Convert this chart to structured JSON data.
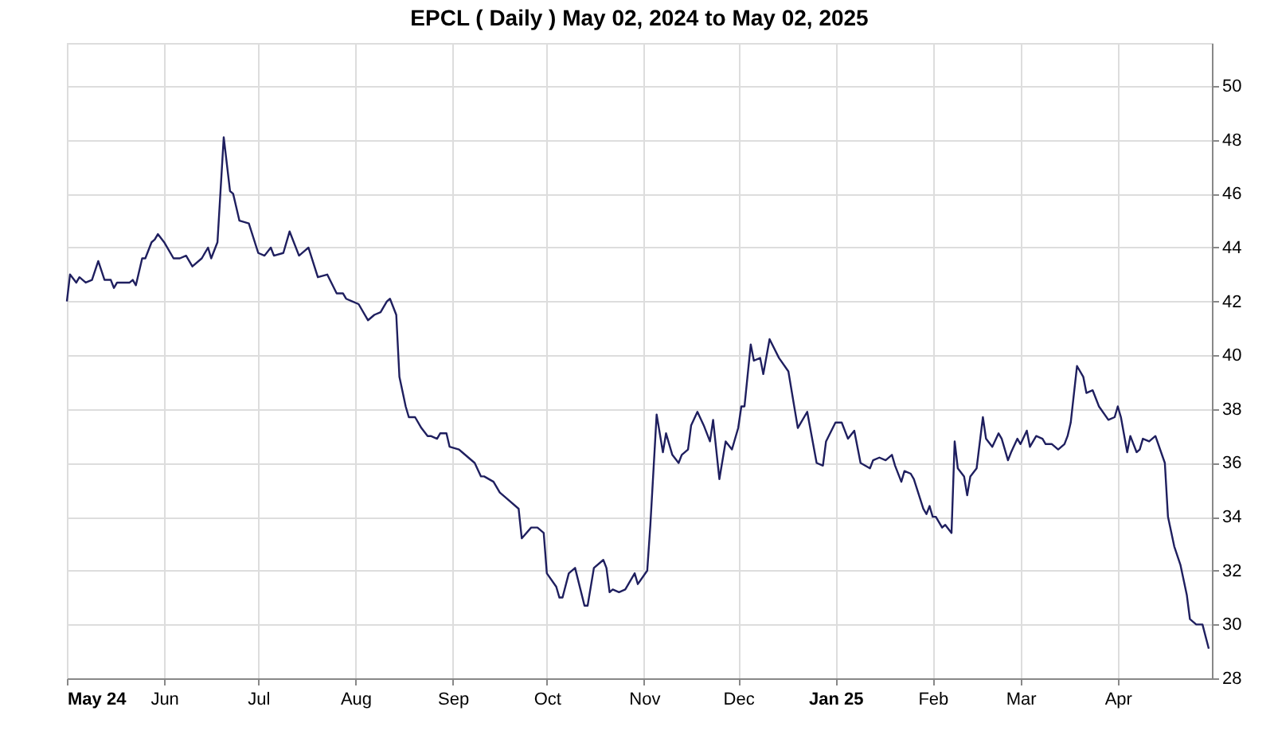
{
  "chart_data": {
    "type": "line",
    "title": "EPCL ( Daily ) May 02, 2024 to May 02, 2025",
    "x": [
      "2024-05-01",
      "2024-05-02",
      "2024-05-04",
      "2024-05-05",
      "2024-05-07",
      "2024-05-09",
      "2024-05-11",
      "2024-05-13",
      "2024-05-15",
      "2024-05-16",
      "2024-05-17",
      "2024-05-21",
      "2024-05-22",
      "2024-05-23",
      "2024-05-25",
      "2024-05-26",
      "2024-05-28",
      "2024-05-29",
      "2024-05-30",
      "2024-06-01",
      "2024-06-04",
      "2024-06-06",
      "2024-06-08",
      "2024-06-10",
      "2024-06-13",
      "2024-06-15",
      "2024-06-16",
      "2024-06-18",
      "2024-06-20",
      "2024-06-22",
      "2024-06-23",
      "2024-06-25",
      "2024-06-28",
      "2024-07-01",
      "2024-07-03",
      "2024-07-05",
      "2024-07-06",
      "2024-07-09",
      "2024-07-11",
      "2024-07-14",
      "2024-07-16",
      "2024-07-17",
      "2024-07-20",
      "2024-07-23",
      "2024-07-26",
      "2024-07-28",
      "2024-07-29",
      "2024-07-31",
      "2024-08-02",
      "2024-08-05",
      "2024-08-07",
      "2024-08-09",
      "2024-08-11",
      "2024-08-12",
      "2024-08-14",
      "2024-08-15",
      "2024-08-17",
      "2024-08-18",
      "2024-08-20",
      "2024-08-22",
      "2024-08-24",
      "2024-08-25",
      "2024-08-27",
      "2024-08-28",
      "2024-08-30",
      "2024-08-31",
      "2024-09-03",
      "2024-09-04",
      "2024-09-08",
      "2024-09-10",
      "2024-09-11",
      "2024-09-14",
      "2024-09-16",
      "2024-09-18",
      "2024-09-22",
      "2024-09-23",
      "2024-09-26",
      "2024-09-28",
      "2024-09-30",
      "2024-10-01",
      "2024-10-04",
      "2024-10-05",
      "2024-10-06",
      "2024-10-08",
      "2024-10-10",
      "2024-10-13",
      "2024-10-14",
      "2024-10-16",
      "2024-10-19",
      "2024-10-20",
      "2024-10-21",
      "2024-10-22",
      "2024-10-24",
      "2024-10-26",
      "2024-10-27",
      "2024-10-29",
      "2024-10-30",
      "2024-11-02",
      "2024-11-03",
      "2024-11-05",
      "2024-11-07",
      "2024-11-08",
      "2024-11-10",
      "2024-11-12",
      "2024-11-13",
      "2024-11-15",
      "2024-11-16",
      "2024-11-18",
      "2024-11-20",
      "2024-11-22",
      "2024-11-23",
      "2024-11-25",
      "2024-11-27",
      "2024-11-29",
      "2024-12-01",
      "2024-12-02",
      "2024-12-03",
      "2024-12-05",
      "2024-12-06",
      "2024-12-08",
      "2024-12-09",
      "2024-12-11",
      "2024-12-14",
      "2024-12-17",
      "2024-12-19",
      "2024-12-20",
      "2024-12-23",
      "2024-12-26",
      "2024-12-28",
      "2024-12-29",
      "2025-01-01",
      "2025-01-03",
      "2025-01-05",
      "2025-01-07",
      "2025-01-09",
      "2025-01-12",
      "2025-01-13",
      "2025-01-15",
      "2025-01-17",
      "2025-01-19",
      "2025-01-20",
      "2025-01-22",
      "2025-01-23",
      "2025-01-25",
      "2025-01-26",
      "2025-01-29",
      "2025-01-30",
      "2025-01-31",
      "2025-02-01",
      "2025-02-02",
      "2025-02-04",
      "2025-02-05",
      "2025-02-07",
      "2025-02-08",
      "2025-02-09",
      "2025-02-11",
      "2025-02-12",
      "2025-02-13",
      "2025-02-15",
      "2025-02-17",
      "2025-02-18",
      "2025-02-20",
      "2025-02-22",
      "2025-02-23",
      "2025-02-25",
      "2025-02-26",
      "2025-02-28",
      "2025-03-01",
      "2025-03-03",
      "2025-03-04",
      "2025-03-06",
      "2025-03-08",
      "2025-03-09",
      "2025-03-11",
      "2025-03-13",
      "2025-03-15",
      "2025-03-16",
      "2025-03-17",
      "2025-03-19",
      "2025-03-21",
      "2025-03-22",
      "2025-03-24",
      "2025-03-26",
      "2025-03-29",
      "2025-03-31",
      "2025-04-01",
      "2025-04-02",
      "2025-04-04",
      "2025-04-05",
      "2025-04-07",
      "2025-04-08",
      "2025-04-09",
      "2025-04-11",
      "2025-04-13",
      "2025-04-16",
      "2025-04-17",
      "2025-04-19",
      "2025-04-21",
      "2025-04-23",
      "2025-04-24",
      "2025-04-26",
      "2025-04-28",
      "2025-04-30"
    ],
    "series": [
      {
        "color": "#1f1f5f",
        "values": [
          42.0,
          43.0,
          42.7,
          42.9,
          42.7,
          42.8,
          43.5,
          42.8,
          42.8,
          42.5,
          42.7,
          42.7,
          42.8,
          42.6,
          43.6,
          43.6,
          44.2,
          44.3,
          44.5,
          44.2,
          43.6,
          43.6,
          43.7,
          43.3,
          43.6,
          44.0,
          43.6,
          44.2,
          48.1,
          46.1,
          46.0,
          45.0,
          44.9,
          43.8,
          43.7,
          44.0,
          43.7,
          43.8,
          44.6,
          43.7,
          43.9,
          44.0,
          42.9,
          43.0,
          42.3,
          42.3,
          42.1,
          42.0,
          41.9,
          41.3,
          41.5,
          41.6,
          42.0,
          42.1,
          41.5,
          39.2,
          38.1,
          37.7,
          37.7,
          37.3,
          37.0,
          37.0,
          36.9,
          37.1,
          37.1,
          36.6,
          36.5,
          36.4,
          36.0,
          35.5,
          35.5,
          35.3,
          34.9,
          34.7,
          34.3,
          33.2,
          33.6,
          33.6,
          33.4,
          31.9,
          31.4,
          31.0,
          31.0,
          31.9,
          32.1,
          30.7,
          30.7,
          32.1,
          32.4,
          32.1,
          31.2,
          31.3,
          31.2,
          31.3,
          31.5,
          31.9,
          31.5,
          32.0,
          33.7,
          37.8,
          36.4,
          37.1,
          36.3,
          36.0,
          36.3,
          36.5,
          37.4,
          37.9,
          37.4,
          36.8,
          37.6,
          35.4,
          36.8,
          36.5,
          37.3,
          38.1,
          38.1,
          40.4,
          39.8,
          39.9,
          39.3,
          40.6,
          39.9,
          39.4,
          38.0,
          37.3,
          37.9,
          36.0,
          35.9,
          36.8,
          37.5,
          37.5,
          36.9,
          37.2,
          36.0,
          35.8,
          36.1,
          36.2,
          36.1,
          36.3,
          35.9,
          35.3,
          35.7,
          35.6,
          35.4,
          34.3,
          34.1,
          34.4,
          34.0,
          34.0,
          33.6,
          33.7,
          33.4,
          36.8,
          35.8,
          35.5,
          34.8,
          35.5,
          35.8,
          37.7,
          36.9,
          36.6,
          37.1,
          36.9,
          36.1,
          36.4,
          36.9,
          36.7,
          37.2,
          36.6,
          37.0,
          36.9,
          36.7,
          36.7,
          36.5,
          36.7,
          37.0,
          37.5,
          39.6,
          39.2,
          38.6,
          38.7,
          38.1,
          37.6,
          37.7,
          38.1,
          37.7,
          36.4,
          37.0,
          36.4,
          36.5,
          36.9,
          36.8,
          37.0,
          36.0,
          34.0,
          32.9,
          32.2,
          31.1,
          30.2,
          30.0,
          30.0,
          29.1
        ]
      }
    ],
    "xlim": [
      "2024-05-01",
      "2025-05-01"
    ],
    "xticks": [
      {
        "value": "2024-05-01",
        "label": "May 24"
      },
      {
        "value": "2024-06-01",
        "label": "Jun"
      },
      {
        "value": "2024-07-01",
        "label": "Jul"
      },
      {
        "value": "2024-08-01",
        "label": "Aug"
      },
      {
        "value": "2024-09-01",
        "label": "Sep"
      },
      {
        "value": "2024-10-01",
        "label": "Oct"
      },
      {
        "value": "2024-11-01",
        "label": "Nov"
      },
      {
        "value": "2024-12-01",
        "label": "Dec"
      },
      {
        "value": "2025-01-01",
        "label": "Jan 25"
      },
      {
        "value": "2025-02-01",
        "label": "Feb"
      },
      {
        "value": "2025-03-01",
        "label": "Mar"
      },
      {
        "value": "2025-04-01",
        "label": "Apr"
      }
    ],
    "ylim": [
      28,
      51.6
    ],
    "yticks": [
      28,
      30,
      32,
      34,
      36,
      38,
      40,
      42,
      44,
      46,
      48,
      50
    ],
    "grid": true,
    "marker": "none",
    "line_style": "solid"
  }
}
